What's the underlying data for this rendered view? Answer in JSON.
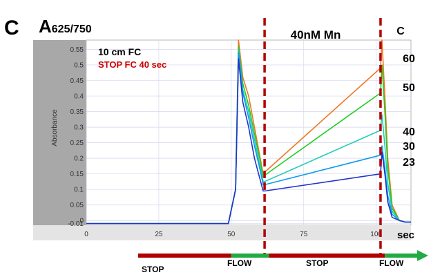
{
  "panel_label": "C",
  "header": {
    "a_prefix": "A",
    "a_subscript": "625/750"
  },
  "notes": {
    "line1": "10 cm FC",
    "line2": "STOP FC 40 sec",
    "line2_color": "#cc0000"
  },
  "condition_label": "40nM Mn",
  "temp_header": "C",
  "unit_label": "sec",
  "phase_bar": {
    "stop_label_1": "STOP",
    "flow_label_1": "FLOW",
    "stop_label_2": "STOP",
    "flow_label_2": "FLOW",
    "stop_color": "#b00000",
    "flow_color": "#22aa44",
    "segments": [
      {
        "state": "stop",
        "from": -30,
        "to": 50
      },
      {
        "state": "flow",
        "from": 50,
        "to": 63
      },
      {
        "state": "stop",
        "from": 63,
        "to": 103
      },
      {
        "state": "flow",
        "from": 103,
        "to": 120
      }
    ]
  },
  "chart_data": {
    "type": "line",
    "title": "",
    "xlabel": "",
    "ylabel": "Absorbance",
    "xlim": [
      0,
      112
    ],
    "ylim": [
      -0.015,
      0.58
    ],
    "xticks": [
      "0",
      "25",
      "50",
      "75",
      "100"
    ],
    "yticks": [
      "-0.01",
      "0",
      "0.05",
      "0.1",
      "0.15",
      "0.2",
      "0.25",
      "0.3",
      "0.35",
      "0.4",
      "0.45",
      "0.5",
      "0.55"
    ],
    "grid": true,
    "stop_markers_x": [
      61.5,
      101.5
    ],
    "series": [
      {
        "name": "60",
        "color": "#ee7722",
        "x": [
          0,
          49,
          51.5,
          52.5,
          54,
          56,
          58,
          60,
          61,
          61.5,
          101.5,
          102,
          103,
          104,
          105.5,
          108,
          110,
          112
        ],
        "y": [
          -0.01,
          -0.01,
          0.1,
          0.58,
          0.46,
          0.4,
          0.3,
          0.2,
          0.15,
          0.155,
          0.49,
          0.58,
          0.4,
          0.2,
          0.05,
          0.0,
          -0.005,
          -0.005
        ]
      },
      {
        "name": "50",
        "color": "#22cc22",
        "x": [
          0,
          49,
          51.5,
          52.5,
          54,
          56,
          58,
          60,
          61,
          61.5,
          101.5,
          102,
          103,
          104,
          105.5,
          108,
          110,
          112
        ],
        "y": [
          -0.01,
          -0.01,
          0.1,
          0.56,
          0.44,
          0.37,
          0.28,
          0.19,
          0.14,
          0.145,
          0.41,
          0.5,
          0.35,
          0.17,
          0.04,
          0.0,
          -0.005,
          -0.005
        ]
      },
      {
        "name": "40",
        "color": "#22ccbb",
        "x": [
          0,
          49,
          51.5,
          52.5,
          54,
          56,
          58,
          60,
          61,
          61.5,
          101.5,
          102,
          103,
          104,
          105.5,
          108,
          110,
          112
        ],
        "y": [
          -0.01,
          -0.01,
          0.1,
          0.55,
          0.42,
          0.35,
          0.26,
          0.17,
          0.125,
          0.125,
          0.29,
          0.34,
          0.24,
          0.12,
          0.03,
          0.0,
          -0.005,
          -0.005
        ]
      },
      {
        "name": "30",
        "color": "#1199ee",
        "x": [
          0,
          49,
          51.5,
          52.5,
          54,
          56,
          58,
          60,
          61,
          61.5,
          101.5,
          102,
          103,
          104,
          105.5,
          108,
          110,
          112
        ],
        "y": [
          -0.01,
          -0.01,
          0.1,
          0.54,
          0.41,
          0.33,
          0.24,
          0.16,
          0.115,
          0.115,
          0.21,
          0.24,
          0.17,
          0.08,
          0.02,
          0.0,
          -0.005,
          -0.005
        ]
      },
      {
        "name": "23",
        "color": "#2233cc",
        "x": [
          0,
          49,
          51.5,
          52.5,
          54,
          56,
          58,
          60,
          61,
          61.5,
          101.5,
          102,
          103,
          104,
          105.5,
          108,
          110,
          112
        ],
        "y": [
          -0.01,
          -0.01,
          0.1,
          0.52,
          0.38,
          0.3,
          0.2,
          0.13,
          0.095,
          0.095,
          0.15,
          0.22,
          0.15,
          0.06,
          0.01,
          0.0,
          -0.005,
          -0.005
        ]
      }
    ]
  }
}
